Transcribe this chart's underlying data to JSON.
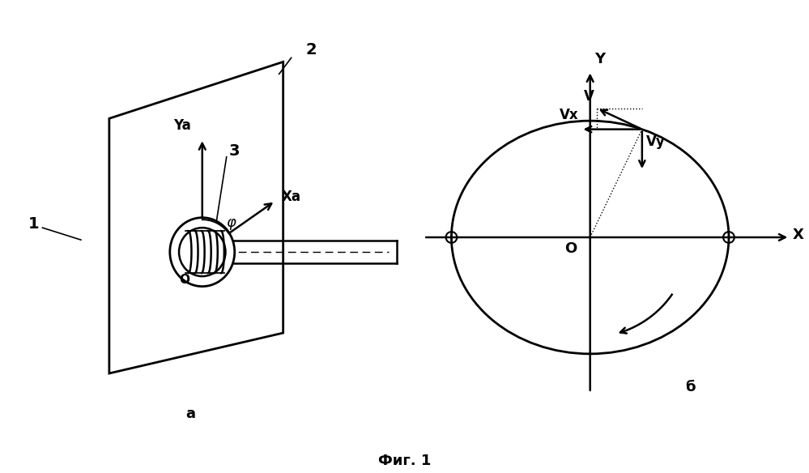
{
  "bg_color": "#ffffff",
  "line_color": "#000000",
  "fig_label": "Фиг. 1",
  "panel_a_label": "а",
  "panel_b_label": "б",
  "label_1": "1",
  "label_2": "2",
  "label_3": "3",
  "label_Ya": "Ya",
  "label_Xa": "Xa",
  "label_phi": "φ",
  "label_O_a": "O",
  "label_Y": "Y",
  "label_X": "X",
  "label_O_b": "O",
  "label_V": "V",
  "label_Vx": "Vx",
  "label_Vy": "Vy"
}
